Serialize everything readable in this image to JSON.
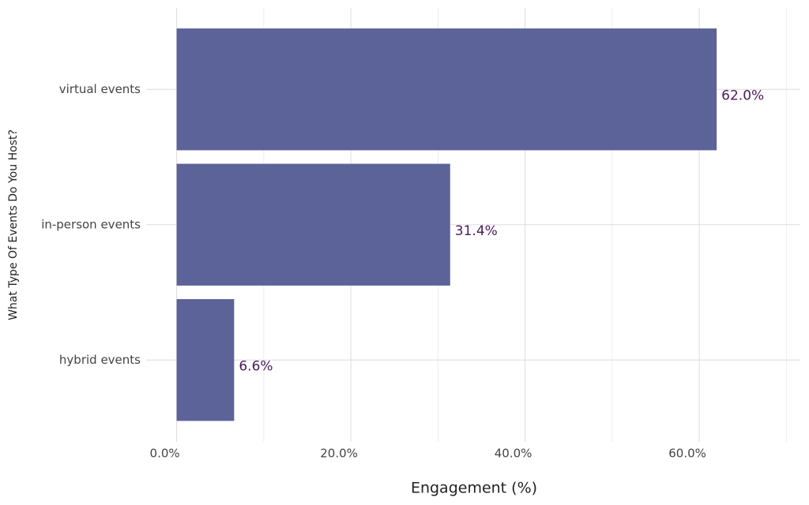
{
  "chart_data": {
    "type": "barh",
    "y_label": "What Type Of Events Do You Host?",
    "x_label": "Engagement (%)",
    "categories": [
      "virtual events",
      "in-person events",
      "hybrid events"
    ],
    "values": [
      62.0,
      31.4,
      6.6
    ],
    "value_labels": [
      "62.0%",
      "31.4%",
      "6.6%"
    ],
    "color": "#5c6399",
    "label_color": "#4a1a5c",
    "xlim": [
      -3.5,
      71.6
    ],
    "xticks": [
      {
        "value": 0,
        "label": "0.0%"
      },
      {
        "value": 20,
        "label": "20.0%"
      },
      {
        "value": 40,
        "label": "40.0%"
      },
      {
        "value": 60,
        "label": "60.0%"
      }
    ],
    "xminorticks": [
      10,
      30,
      50,
      70
    ],
    "grid": true
  }
}
